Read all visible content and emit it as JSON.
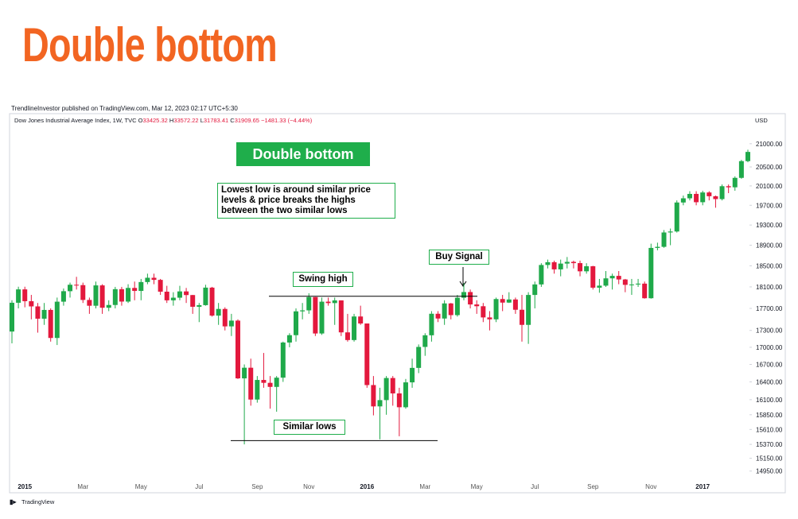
{
  "header": {
    "title": "Double bottom",
    "byline": "TrendlineInvestor published on TradingView.com, Mar 12, 2023 02:17 UTC+5:30",
    "symbol": "Dow Jones Industrial Average Index, 1W, TVC",
    "quote": [
      {
        "key": "O",
        "value": "33425.32"
      },
      {
        "key": "H",
        "value": "33572.22"
      },
      {
        "key": "L",
        "value": "31783.41"
      },
      {
        "key": "C",
        "value": "31909.65"
      }
    ],
    "change": "−1481.33 (−4.44%)",
    "currency": "USD"
  },
  "annotations": {
    "badge": "Double bottom",
    "note": "Lowest low is around similar price levels & price breaks the highs between the two similar lows",
    "swing_high": {
      "text": "Swing high",
      "level": 17925
    },
    "buy_signal": {
      "text": "Buy Signal"
    },
    "similar_lows": {
      "text": "Similar lows",
      "level": 15430
    }
  },
  "footer": {
    "brand": "TradingView"
  },
  "chart_data": {
    "type": "candlestick",
    "categories": [
      null,
      null,
      "2015",
      null,
      null,
      null,
      null,
      null,
      null,
      null,
      null,
      "Mar",
      null,
      null,
      null,
      null,
      null,
      null,
      null,
      null,
      "May",
      null,
      null,
      null,
      null,
      null,
      null,
      null,
      null,
      "Jul",
      null,
      null,
      null,
      null,
      null,
      null,
      null,
      null,
      "Sep",
      null,
      null,
      null,
      null,
      null,
      null,
      null,
      "Nov",
      null,
      null,
      null,
      null,
      null,
      null,
      null,
      null,
      "2016",
      null,
      null,
      null,
      null,
      null,
      null,
      null,
      null,
      "Mar",
      null,
      null,
      null,
      null,
      null,
      null,
      null,
      "May",
      null,
      null,
      null,
      null,
      null,
      null,
      null,
      null,
      "Jul",
      null,
      null,
      null,
      null,
      null,
      null,
      null,
      null,
      "Sep",
      null,
      null,
      null,
      null,
      null,
      null,
      null,
      null,
      "Nov",
      null,
      null,
      null,
      null,
      null,
      null,
      null,
      "2017",
      null,
      null,
      null,
      null,
      null,
      null,
      null
    ],
    "open": [
      17280,
      17804,
      18053,
      17833,
      17737,
      17512,
      17672,
      17165,
      17824,
      18019,
      18140,
      18133,
      17856,
      17749,
      18128,
      17712,
      17763,
      18057,
      17826,
      18080,
      18024,
      18191,
      18272,
      18232,
      18010,
      17849,
      17898,
      18015,
      17947,
      17730,
      17760,
      18086,
      17568,
      17690,
      17373,
      17477,
      16460,
      16643,
      16102,
      16433,
      16384,
      16315,
      16472,
      17084,
      17215,
      17646,
      17664,
      17910,
      17245,
      17824,
      17798,
      17848,
      17265,
      17128,
      17552,
      17425,
      16346,
      15988,
      16093,
      16466,
      16205,
      15974,
      16392,
      16640,
      17006,
      17213,
      17602,
      17515,
      17792,
      17577,
      17897,
      18003,
      17773,
      17740,
      17535,
      17500,
      17873,
      17807,
      17865,
      17675,
      17400,
      17949,
      18146,
      18516,
      18570,
      18432,
      18543,
      18576,
      18552,
      18395,
      18492,
      18085,
      18123,
      18261,
      18308,
      18240,
      18138,
      18145,
      18161,
      17888,
      18847,
      18868,
      19152,
      19171,
      19757,
      19843,
      19934,
      19763,
      19964,
      19886,
      19827,
      20094,
      20071,
      20269,
      20624
    ],
    "high": [
      17850,
      18103,
      18103,
      17950,
      17800,
      17800,
      17700,
      17900,
      18070,
      18180,
      18290,
      18180,
      17900,
      18200,
      18150,
      17850,
      18100,
      18100,
      18150,
      18200,
      18250,
      18350,
      18350,
      18250,
      18120,
      18000,
      18120,
      18080,
      17950,
      17800,
      18140,
      18100,
      17800,
      17720,
      17600,
      17500,
      16700,
      16800,
      16500,
      16900,
      16500,
      16500,
      17100,
      17250,
      17700,
      17800,
      17980,
      17910,
      17900,
      17900,
      17900,
      17848,
      17600,
      17600,
      17750,
      17425,
      16500,
      16300,
      16500,
      16500,
      16300,
      16450,
      16800,
      17050,
      17250,
      17650,
      17650,
      17850,
      17800,
      17950,
      18170,
      18050,
      17850,
      17800,
      17650,
      17900,
      17950,
      18000,
      17900,
      17950,
      18000,
      18200,
      18550,
      18620,
      18600,
      18620,
      18670,
      18600,
      18600,
      18550,
      18500,
      18250,
      18400,
      18350,
      18400,
      18250,
      18250,
      18250,
      18200,
      18930,
      18950,
      19200,
      19230,
      19800,
      19900,
      19990,
      19990,
      20000,
      19990,
      19900,
      20130,
      20130,
      20300,
      20650,
      20870
    ],
    "low": [
      17070,
      17700,
      17720,
      17500,
      17260,
      17400,
      17100,
      17040,
      17750,
      17900,
      18050,
      17800,
      17600,
      17700,
      17600,
      17650,
      17700,
      17750,
      17800,
      17850,
      17850,
      18150,
      18150,
      17950,
      17800,
      17750,
      17850,
      17800,
      17600,
      17450,
      17750,
      17550,
      17400,
      17300,
      17200,
      16450,
      15370,
      16000,
      16050,
      16300,
      15950,
      15900,
      16400,
      17000,
      17100,
      17500,
      17600,
      17200,
      17220,
      17750,
      17400,
      17200,
      17100,
      17100,
      17400,
      16300,
      15840,
      15450,
      15850,
      16000,
      15500,
      15950,
      16300,
      16550,
      16850,
      17100,
      17450,
      17400,
      17500,
      17550,
      17850,
      17700,
      17600,
      17450,
      17300,
      17450,
      17650,
      17800,
      17600,
      17100,
      17060,
      17700,
      18100,
      18450,
      18350,
      18300,
      18450,
      18450,
      18300,
      18350,
      18050,
      17990,
      18100,
      18050,
      18150,
      18000,
      17950,
      18100,
      17880,
      17880,
      18800,
      18850,
      18900,
      19150,
      19700,
      19800,
      19700,
      19700,
      19800,
      19650,
      19800,
      19950,
      20000,
      20250,
      20600
    ],
    "close": [
      17804,
      18053,
      17833,
      17737,
      17512,
      17672,
      17165,
      17824,
      18019,
      18140,
      18133,
      17856,
      17749,
      18128,
      17712,
      17763,
      18057,
      17826,
      18080,
      18024,
      18191,
      18272,
      18232,
      18010,
      17849,
      17898,
      18015,
      17947,
      17730,
      17760,
      18086,
      17568,
      17690,
      17373,
      17477,
      16460,
      16643,
      16102,
      16433,
      16384,
      16315,
      16472,
      17084,
      17215,
      17646,
      17664,
      17910,
      17245,
      17824,
      17798,
      17848,
      17265,
      17128,
      17552,
      17425,
      16346,
      15988,
      16093,
      16466,
      16205,
      15974,
      16392,
      16640,
      17006,
      17213,
      17602,
      17515,
      17792,
      17577,
      17897,
      18003,
      17773,
      17740,
      17535,
      17500,
      17873,
      17807,
      17865,
      17675,
      17400,
      17949,
      18146,
      18516,
      18570,
      18432,
      18543,
      18576,
      18552,
      18395,
      18492,
      18085,
      18123,
      18261,
      18308,
      18240,
      18138,
      18145,
      18161,
      17888,
      18847,
      18868,
      19152,
      19171,
      19757,
      19843,
      19934,
      19763,
      19964,
      19886,
      19827,
      20094,
      20071,
      20269,
      20624,
      20822
    ],
    "up_color": "#1fa94a",
    "down_color": "#e3183d",
    "log_scale": true,
    "ylim": [
      14860,
      21630
    ],
    "yticks": [
      {
        "value": 21000,
        "label": "21000.00"
      },
      {
        "value": 20500,
        "label": "20500.00"
      },
      {
        "value": 20100,
        "label": "20100.00"
      },
      {
        "value": 19700,
        "label": "19700.00"
      },
      {
        "value": 19300,
        "label": "19300.00"
      },
      {
        "value": 18900,
        "label": "18900.00"
      },
      {
        "value": 18500,
        "label": "18500.00"
      },
      {
        "value": 18100,
        "label": "18100.00"
      },
      {
        "value": 17700,
        "label": "17700.00"
      },
      {
        "value": 17300,
        "label": "17300.00"
      },
      {
        "value": 17000,
        "label": "17000.00"
      },
      {
        "value": 16700,
        "label": "16700.00"
      },
      {
        "value": 16400,
        "label": "16400.00"
      },
      {
        "value": 16100,
        "label": "16100.00"
      },
      {
        "value": 15850,
        "label": "15850.00"
      },
      {
        "value": 15610,
        "label": "15610.00"
      },
      {
        "value": 15370,
        "label": "15370.00"
      },
      {
        "value": 15150,
        "label": "15150.00"
      },
      {
        "value": 14950,
        "label": "14950.00"
      }
    ]
  }
}
